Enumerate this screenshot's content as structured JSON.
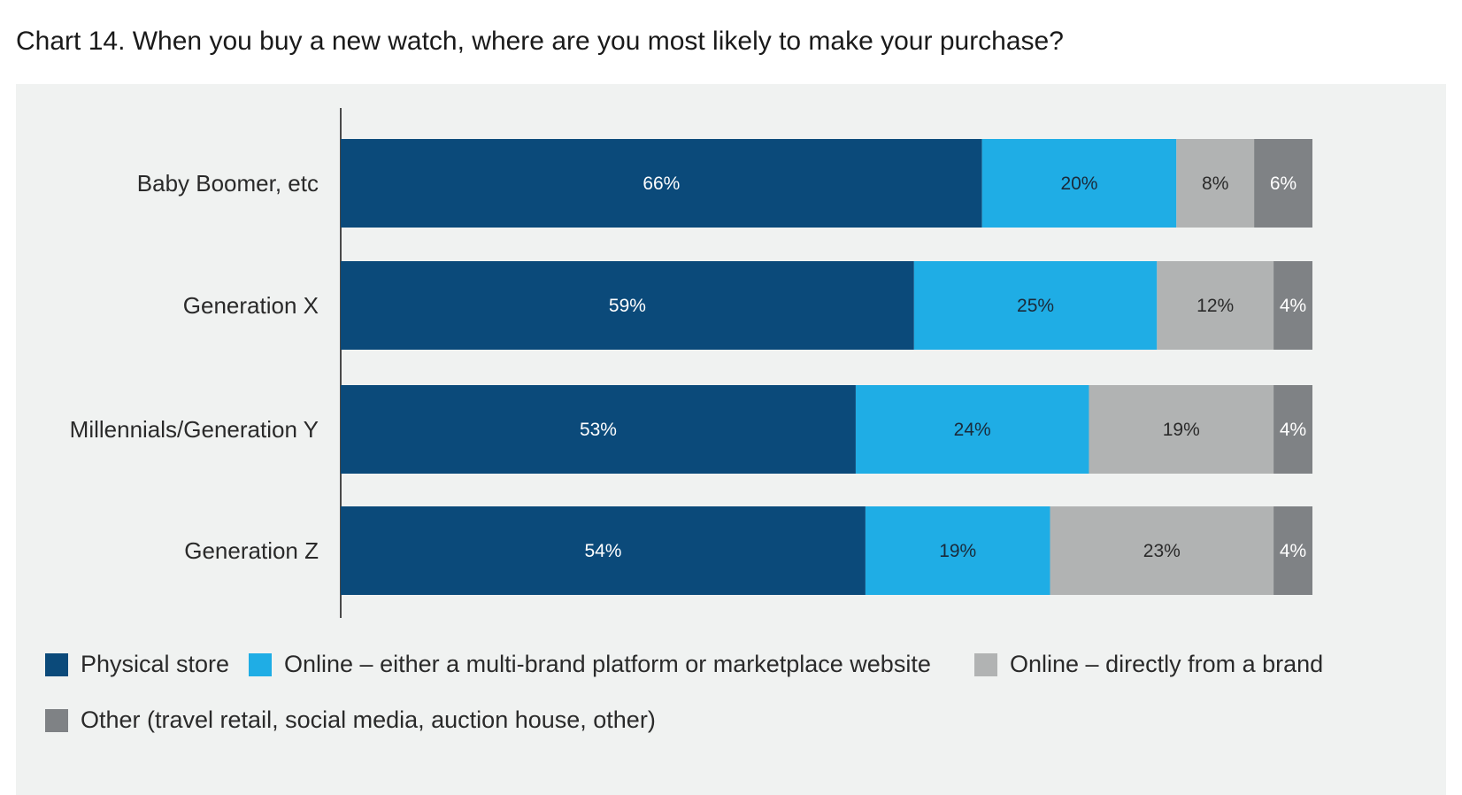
{
  "title": "Chart 14. When you buy a new watch, where are you most likely to make your purchase?",
  "chart_data": {
    "type": "bar",
    "orientation": "horizontal",
    "stacked": true,
    "categories": [
      "Baby Boomer, etc",
      "Generation X",
      "Millennials/Generation Y",
      "Generation Z"
    ],
    "series": [
      {
        "name": "Physical store",
        "color": "#0b4a7a",
        "label_color": "#ffffff",
        "values": [
          66,
          59,
          53,
          54
        ],
        "labels": [
          "66%",
          "59%",
          "53%",
          "54%"
        ]
      },
      {
        "name": "Online – either a multi-brand platform or marketplace website",
        "color": "#1fade5",
        "label_color": "#1a2a3a",
        "values": [
          20,
          25,
          24,
          19
        ],
        "labels": [
          "20%",
          "25%",
          "24%",
          "19%"
        ]
      },
      {
        "name": "Online – directly from a brand",
        "color": "#b1b3b3",
        "label_color": "#2a2a2a",
        "values": [
          8,
          12,
          19,
          23
        ],
        "labels": [
          "8%",
          "12%",
          "19%",
          "23%"
        ]
      },
      {
        "name": "Other (travel retail, social media, auction house, other)",
        "color": "#7f8285",
        "label_color": "#ffffff",
        "values": [
          6,
          4,
          4,
          4
        ],
        "labels": [
          "6%",
          "4%",
          "4%",
          "4%"
        ]
      }
    ],
    "xlim": [
      0,
      100
    ],
    "grid": false,
    "legend_position": "bottom"
  }
}
